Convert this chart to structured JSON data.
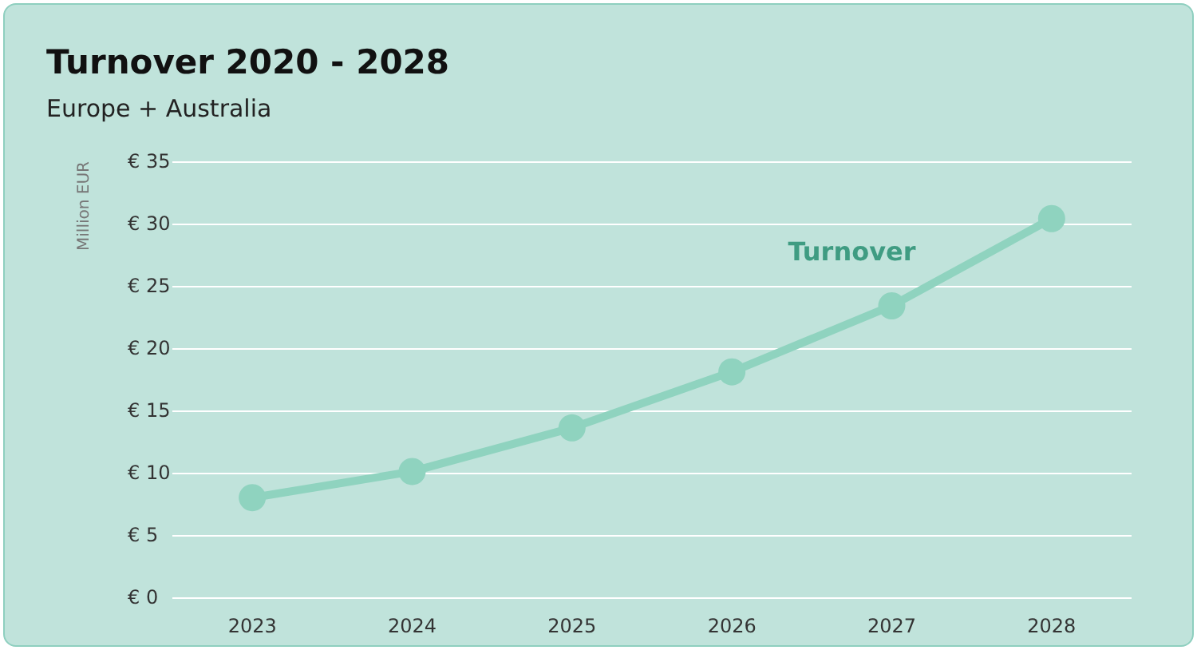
{
  "chart_data": {
    "type": "line",
    "title": "Turnover 2020 - 2028",
    "subtitle": "Europe + Australia",
    "ylabel": "Million EUR",
    "categories": [
      "2023",
      "2024",
      "2025",
      "2026",
      "2027",
      "2028"
    ],
    "series": [
      {
        "name": "Turnover",
        "color": "#8fd3bf",
        "values": [
          8.0,
          10.1,
          13.6,
          18.1,
          23.4,
          30.4
        ]
      }
    ],
    "ylim": [
      0,
      35
    ],
    "yticks": [
      {
        "value": 0,
        "label": "€ 0"
      },
      {
        "value": 5,
        "label": "€ 5"
      },
      {
        "value": 10,
        "label": "€ 10"
      },
      {
        "value": 15,
        "label": "€ 15"
      },
      {
        "value": 20,
        "label": "€ 20"
      },
      {
        "value": 25,
        "label": "€ 25"
      },
      {
        "value": 30,
        "label": "€ 30"
      },
      {
        "value": 35,
        "label": "€ 35"
      }
    ],
    "grid": "y",
    "legend": false,
    "marker": "circle",
    "line_style": "solid"
  }
}
